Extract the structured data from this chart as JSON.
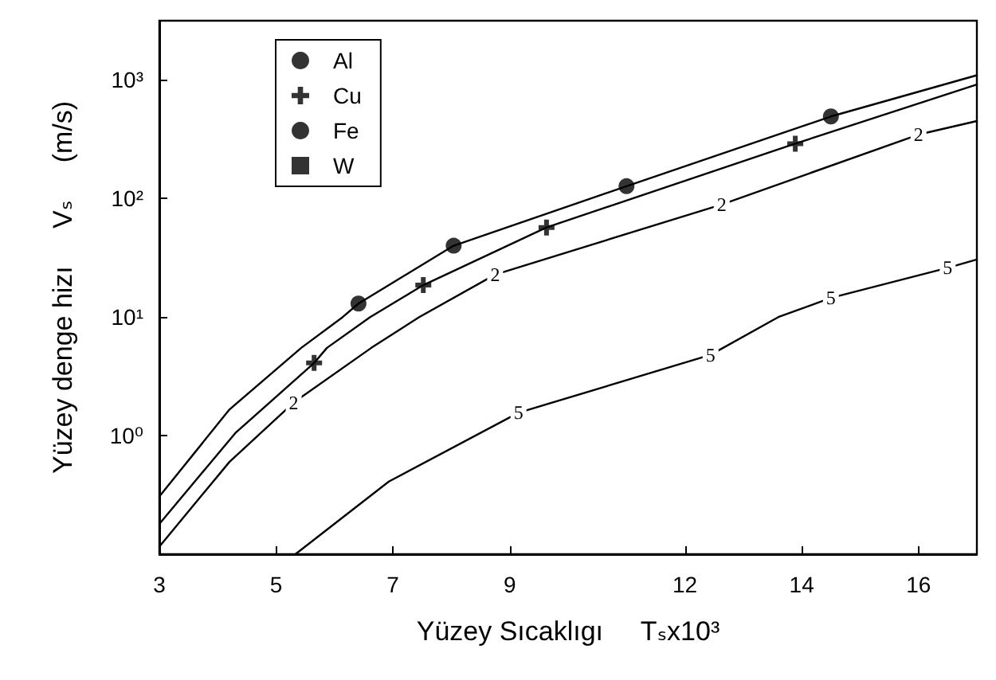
{
  "chart_data": {
    "type": "line",
    "xlabel": "Yüzey Sıcaklıgı     Tₛx10³",
    "ylabel": "Yüzey denge hizı     Vₛ     (m/s)",
    "xlim": [
      3,
      17
    ],
    "xticks": [
      3,
      5,
      7,
      9,
      12,
      14,
      16
    ],
    "ylim": [
      0.1,
      3160
    ],
    "yticks": [
      {
        "value": 1,
        "label": "10⁰"
      },
      {
        "value": 10,
        "label": "10¹"
      },
      {
        "value": 100,
        "label": "10²"
      },
      {
        "value": 1000,
        "label": "10³"
      }
    ],
    "log": "y",
    "grid": false,
    "legend": "top left",
    "line_style": "solid",
    "series": [
      {
        "color": "#000000",
        "x": [
          3,
          4.2,
          5.43,
          6.14,
          6.41,
          8.04,
          11.0,
          14.5,
          17
        ],
        "values": [
          0.307,
          1.66,
          5.5,
          10,
          13,
          40,
          127,
          492,
          1096
        ]
      },
      {
        "color": "#000000",
        "x": [
          3,
          4.3,
          5.65,
          5.87,
          6.61,
          7.52,
          9.63,
          13.89,
          17
        ],
        "values": [
          0.18,
          1.05,
          4.1,
          5.5,
          10,
          18.6,
          57,
          290,
          915
        ]
      },
      {
        "color": "#000000",
        "x": [
          3,
          4.2,
          5.3,
          6.63,
          7.45,
          8.75,
          12.63,
          16,
          17
        ],
        "values": [
          0.116,
          0.6,
          1.9,
          5.5,
          10,
          22.8,
          89,
          346,
          450
        ]
      },
      {
        "color": "#000000",
        "x": [
          5.33,
          6.93,
          9.15,
          12.44,
          13.6,
          14.5,
          16.5,
          17
        ],
        "values": [
          0.1,
          0.41,
          1.56,
          4.8,
          10,
          14.5,
          26,
          30.6
        ]
      },
      {
        "type": "scatter",
        "name": "Al",
        "color": "#000000",
        "marker": "circle",
        "x": [
          6.41,
          8.04,
          11.0,
          14.5
        ],
        "values": [
          13,
          40,
          127,
          492
        ]
      },
      {
        "type": "scatter",
        "name": "Cu",
        "color": "#000000",
        "marker": "cross",
        "x": [
          5.65,
          7.52,
          9.63,
          13.89
        ],
        "values": [
          4.1,
          18.6,
          57,
          290
        ]
      },
      {
        "type": "scatter",
        "name": "Fe",
        "color": "#000000",
        "marker": "circle"
      },
      {
        "type": "scatter",
        "name": "W",
        "color": "#000000",
        "marker": "square"
      }
    ],
    "annotations": [
      {
        "text": "2",
        "x": 5.3,
        "y": 1.9
      },
      {
        "text": "2",
        "x": 8.75,
        "y": 22.8
      },
      {
        "text": "2",
        "x": 12.63,
        "y": 89
      },
      {
        "text": "2",
        "x": 16,
        "y": 346
      },
      {
        "text": "5",
        "x": 9.15,
        "y": 1.56
      },
      {
        "text": "5",
        "x": 12.44,
        "y": 4.8
      },
      {
        "text": "5",
        "x": 14.5,
        "y": 14.5
      },
      {
        "text": "5",
        "x": 16.5,
        "y": 26
      }
    ]
  }
}
